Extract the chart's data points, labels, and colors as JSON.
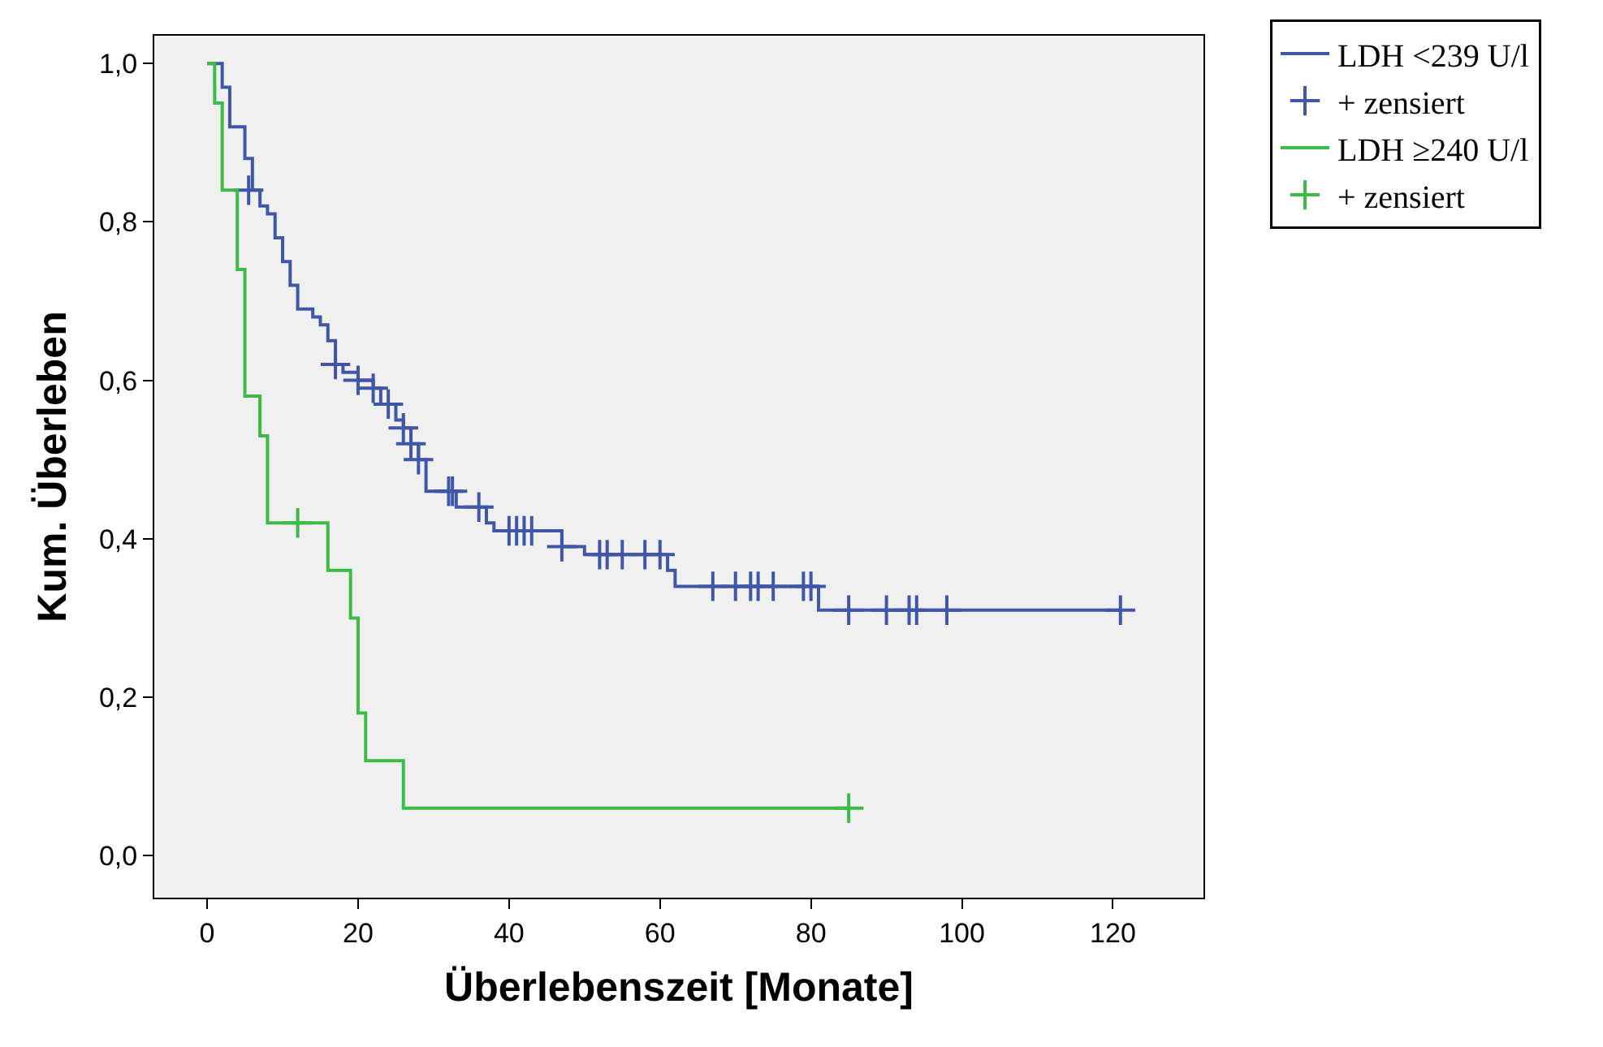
{
  "chart_data": {
    "type": "step",
    "xlabel": "Überlebenszeit [Monate]",
    "ylabel": "Kum. Überleben",
    "xlim": [
      -7,
      132
    ],
    "ylim": [
      -0.053,
      1.035
    ],
    "xticks": [
      0,
      20,
      40,
      60,
      80,
      100,
      120
    ],
    "yticks": [
      {
        "value": 0,
        "label": "0,0"
      },
      {
        "value": 0.2,
        "label": "0,2"
      },
      {
        "value": 0.4,
        "label": "0,4"
      },
      {
        "value": 0.6,
        "label": "0,6"
      },
      {
        "value": 0.8,
        "label": "0,8"
      },
      {
        "value": 1,
        "label": "1,0"
      }
    ],
    "grid": false,
    "legend": "top right",
    "series": [
      {
        "name": "LDH <239 U/l",
        "color": "#3f57a6",
        "x": [
          0,
          2,
          3,
          5,
          6,
          7,
          8,
          9,
          10,
          11,
          12,
          14,
          15,
          16,
          17,
          18,
          20,
          22,
          23,
          25,
          26,
          27,
          28,
          29,
          33,
          37,
          38,
          47,
          50,
          61,
          62,
          81,
          121
        ],
        "values": [
          1.0,
          0.97,
          0.92,
          0.88,
          0.84,
          0.82,
          0.81,
          0.78,
          0.75,
          0.72,
          0.69,
          0.68,
          0.67,
          0.65,
          0.62,
          0.61,
          0.6,
          0.59,
          0.57,
          0.55,
          0.54,
          0.52,
          0.5,
          0.46,
          0.44,
          0.42,
          0.41,
          0.39,
          0.38,
          0.36,
          0.34,
          0.31,
          0.31
        ]
      },
      {
        "name": "+ zensiert",
        "color": "#3f57a6",
        "type": "scatter",
        "marker": "cross",
        "x": [
          5.5,
          17,
          20,
          22,
          24,
          26,
          27,
          28,
          32,
          32.5,
          36,
          40,
          41,
          42,
          43,
          47,
          52,
          53,
          55,
          58,
          60,
          67,
          70,
          72,
          73,
          75,
          79,
          80,
          85,
          90,
          93,
          94,
          98,
          121
        ],
        "values": [
          0.84,
          0.62,
          0.6,
          0.59,
          0.57,
          0.54,
          0.52,
          0.5,
          0.46,
          0.46,
          0.44,
          0.41,
          0.41,
          0.41,
          0.41,
          0.39,
          0.38,
          0.38,
          0.38,
          0.38,
          0.38,
          0.34,
          0.34,
          0.34,
          0.34,
          0.34,
          0.34,
          0.34,
          0.31,
          0.31,
          0.31,
          0.31,
          0.31,
          0.31
        ]
      },
      {
        "name": "LDH ≥240 U/l",
        "color": "#3dbb47",
        "x": [
          0,
          1,
          2,
          4,
          5,
          7,
          8,
          16,
          19,
          20,
          21,
          26,
          85
        ],
        "values": [
          1.0,
          0.95,
          0.84,
          0.74,
          0.58,
          0.53,
          0.42,
          0.36,
          0.3,
          0.18,
          0.12,
          0.06,
          0.06
        ]
      },
      {
        "name": "+ zensiert",
        "color": "#3dbb47",
        "type": "scatter",
        "marker": "cross",
        "x": [
          12,
          85
        ],
        "values": [
          0.42,
          0.06
        ]
      }
    ]
  }
}
